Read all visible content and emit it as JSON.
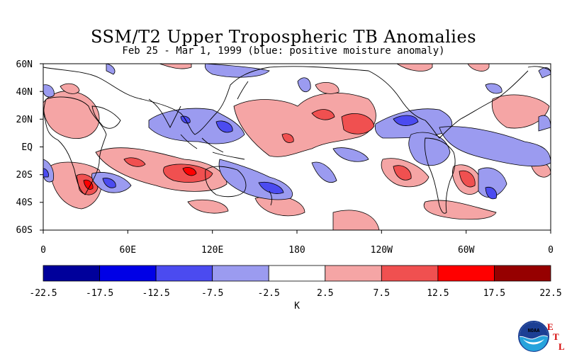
{
  "title": "SSM/T2 Upper Tropospheric TB Anomalies",
  "subtitle": "Feb 25 - Mar 1, 1999 (blue: positive moisture anomaly)",
  "lat_labels": [
    "60N",
    "40N",
    "20N",
    "EQ",
    "20S",
    "40S",
    "60S"
  ],
  "lon_labels": [
    "0",
    "60E",
    "120E",
    "180",
    "120W",
    "60W",
    "0"
  ],
  "colorbar": {
    "unit": "K",
    "tick_labels": [
      "-22.5",
      "-17.5",
      "-12.5",
      "-7.5",
      "-2.5",
      "2.5",
      "7.5",
      "12.5",
      "17.5",
      "22.5"
    ],
    "colors": [
      "#00009b",
      "#0000e6",
      "#4b4bf0",
      "#9b9bf0",
      "#ffffff",
      "#f5a5a5",
      "#f05050",
      "#ff0000",
      "#960000"
    ]
  },
  "logo": {
    "agency": "NOAA",
    "letters": [
      "E",
      "T",
      "L"
    ]
  }
}
